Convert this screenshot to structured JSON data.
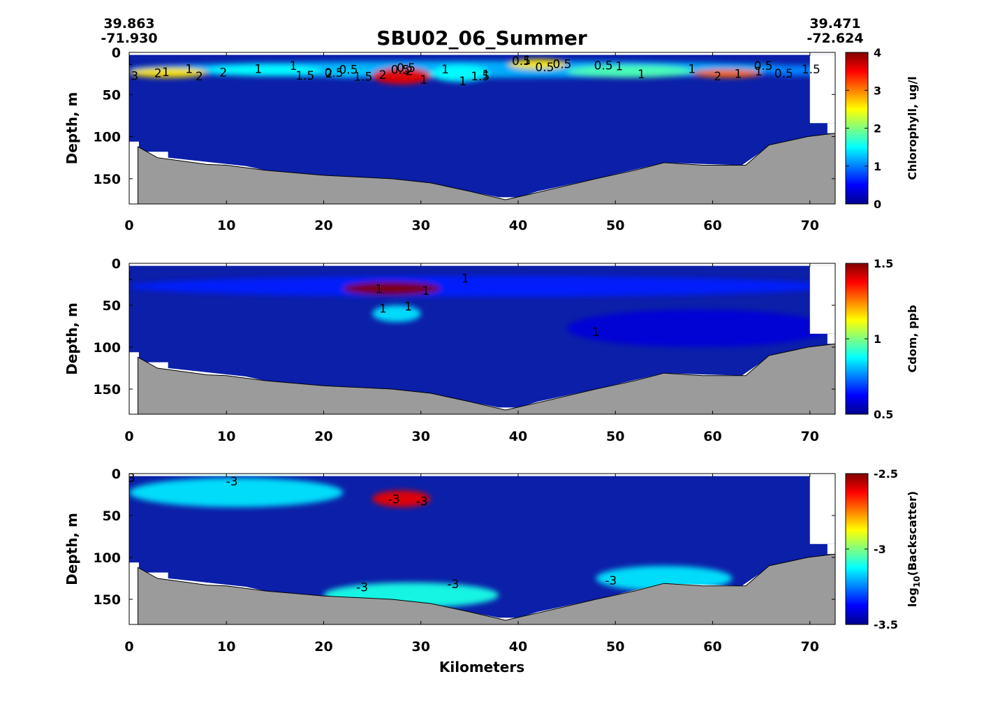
{
  "title": "SBU02_06_Summer",
  "start_lat": "39.863",
  "start_lon": "-71.930",
  "end_lat": "39.471",
  "end_lon": "-72.624",
  "xlabel": "Kilometers",
  "ylabel": "Depth, m",
  "chart_data": [
    {
      "type": "heatmap",
      "variable": "Chlorophyll",
      "colorbar_label": "Chlorophyll, ug/l",
      "colorbar_ticks": [
        "0",
        "1",
        "2",
        "3",
        "4"
      ],
      "clim": [
        0,
        4
      ],
      "x_ticks": [
        "0",
        "10",
        "20",
        "30",
        "40",
        "50",
        "60",
        "70"
      ],
      "y_ticks": [
        "0",
        "50",
        "100",
        "150"
      ],
      "xlim": [
        0,
        72.6
      ],
      "ylim": [
        180,
        0
      ],
      "background": "#0b1fa8",
      "features": [
        {
          "x": [
            0,
            72
          ],
          "y": [
            10,
            30
          ],
          "value": 1.2
        },
        {
          "x": [
            0,
            8
          ],
          "y": [
            18,
            30
          ],
          "value": 2.6
        },
        {
          "x": [
            8,
            20
          ],
          "y": [
            15,
            28
          ],
          "value": 1.5
        },
        {
          "x": [
            20,
            25
          ],
          "y": [
            18,
            30
          ],
          "value": 1.3
        },
        {
          "x": [
            25,
            31
          ],
          "y": [
            18,
            38
          ],
          "value": 3.6
        },
        {
          "x": [
            31,
            37
          ],
          "y": [
            15,
            35
          ],
          "value": 1.5
        },
        {
          "x": [
            39,
            45
          ],
          "y": [
            8,
            20
          ],
          "value": 2.6
        },
        {
          "x": [
            45,
            58
          ],
          "y": [
            15,
            30
          ],
          "value": 1.8
        },
        {
          "x": [
            58,
            65
          ],
          "y": [
            20,
            30
          ],
          "value": 3.1
        },
        {
          "x": [
            65,
            72
          ],
          "y": [
            15,
            28
          ],
          "value": 1.0
        }
      ],
      "contour_labels": [
        "1",
        "2",
        "1",
        "2",
        "0.5",
        "1.5",
        "0.5",
        "1",
        "1",
        "0.5",
        "1",
        "3",
        "1",
        "1.5",
        "2",
        "1",
        "0.5",
        "0.5",
        "1",
        "0.5",
        "2",
        "1",
        "2",
        "0.5",
        "1",
        "1",
        "0.5",
        "1",
        "2",
        "1.5",
        "2",
        "1",
        "1.5",
        "0.5",
        "0.5",
        "1",
        "1"
      ]
    },
    {
      "type": "heatmap",
      "variable": "Cdom",
      "colorbar_label": "Cdom, ppb",
      "colorbar_ticks": [
        "0.5",
        "1",
        "1.5"
      ],
      "clim": [
        0.5,
        1.5
      ],
      "x_ticks": [
        "0",
        "10",
        "20",
        "30",
        "40",
        "50",
        "60",
        "70"
      ],
      "y_ticks": [
        "0",
        "50",
        "100",
        "150"
      ],
      "xlim": [
        0,
        72.6
      ],
      "ylim": [
        180,
        0
      ],
      "background": "#0b1fa8",
      "features": [
        {
          "x": [
            0,
            72
          ],
          "y": [
            15,
            40
          ],
          "value": 0.65
        },
        {
          "x": [
            22,
            32
          ],
          "y": [
            22,
            38
          ],
          "value": 1.5
        },
        {
          "x": [
            25,
            30
          ],
          "y": [
            50,
            70
          ],
          "value": 0.85
        },
        {
          "x": [
            45,
            72
          ],
          "y": [
            55,
            100
          ],
          "value": 0.58
        }
      ],
      "contour_labels": [
        "1",
        "1",
        "1",
        "1",
        "1",
        "1",
        "1"
      ]
    },
    {
      "type": "heatmap",
      "variable": "Backscatter",
      "colorbar_label": "log10(Backscatter)",
      "colorbar_ticks": [
        "-2.5",
        "-3",
        "-3.5"
      ],
      "clim": [
        -3.5,
        -2.5
      ],
      "x_ticks": [
        "0",
        "10",
        "20",
        "30",
        "40",
        "50",
        "60",
        "70"
      ],
      "y_ticks": [
        "0",
        "50",
        "100",
        "150"
      ],
      "xlim": [
        0,
        72.6
      ],
      "ylim": [
        180,
        0
      ],
      "background": "#0b1fa8",
      "features": [
        {
          "x": [
            0,
            22
          ],
          "y": [
            5,
            40
          ],
          "value": -3.15
        },
        {
          "x": [
            25,
            31
          ],
          "y": [
            20,
            40
          ],
          "value": -2.6
        },
        {
          "x": [
            20,
            38
          ],
          "y": [
            130,
            160
          ],
          "value": -3.1
        },
        {
          "x": [
            48,
            62
          ],
          "y": [
            110,
            140
          ],
          "value": -3.15
        }
      ],
      "contour_labels": [
        "-3",
        "-3",
        "-3",
        "-3",
        "-3",
        "-3",
        "-3"
      ]
    }
  ]
}
